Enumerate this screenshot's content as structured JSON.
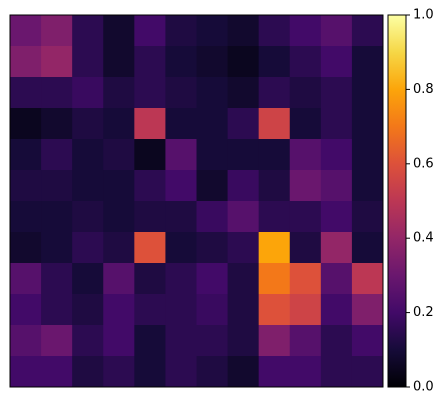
{
  "chart_data": {
    "type": "heatmap",
    "colormap": "inferno",
    "zlim": [
      0,
      1
    ],
    "colorbar_ticks": [
      {
        "value": 0,
        "label": "0.0"
      },
      {
        "value": 0.2,
        "label": "0.2"
      },
      {
        "value": 0.4,
        "label": "0.4"
      },
      {
        "value": 0.6,
        "label": "0.6"
      },
      {
        "value": 0.8,
        "label": "0.8"
      },
      {
        "value": 1,
        "label": "1.0"
      }
    ],
    "z": [
      [
        0.3,
        0.35,
        0.15,
        0.08,
        0.2,
        0.12,
        0.1,
        0.08,
        0.15,
        0.2,
        0.25,
        0.15
      ],
      [
        0.35,
        0.4,
        0.15,
        0.08,
        0.15,
        0.1,
        0.08,
        0.05,
        0.1,
        0.15,
        0.2,
        0.1
      ],
      [
        0.15,
        0.15,
        0.18,
        0.12,
        0.15,
        0.12,
        0.1,
        0.08,
        0.15,
        0.12,
        0.15,
        0.1
      ],
      [
        0.05,
        0.08,
        0.12,
        0.1,
        0.5,
        0.1,
        0.1,
        0.15,
        0.55,
        0.1,
        0.15,
        0.1
      ],
      [
        0.1,
        0.15,
        0.1,
        0.12,
        0.05,
        0.25,
        0.1,
        0.1,
        0.1,
        0.25,
        0.2,
        0.1
      ],
      [
        0.12,
        0.12,
        0.1,
        0.1,
        0.15,
        0.2,
        0.08,
        0.18,
        0.12,
        0.3,
        0.25,
        0.1
      ],
      [
        0.1,
        0.1,
        0.12,
        0.1,
        0.12,
        0.12,
        0.18,
        0.25,
        0.15,
        0.15,
        0.2,
        0.12
      ],
      [
        0.08,
        0.1,
        0.15,
        0.12,
        0.6,
        0.1,
        0.12,
        0.15,
        0.8,
        0.12,
        0.4,
        0.1
      ],
      [
        0.25,
        0.15,
        0.1,
        0.25,
        0.12,
        0.15,
        0.2,
        0.12,
        0.7,
        0.6,
        0.25,
        0.5
      ],
      [
        0.2,
        0.15,
        0.12,
        0.2,
        0.15,
        0.15,
        0.18,
        0.12,
        0.6,
        0.55,
        0.2,
        0.35
      ],
      [
        0.25,
        0.3,
        0.15,
        0.2,
        0.1,
        0.15,
        0.15,
        0.12,
        0.35,
        0.25,
        0.15,
        0.2
      ],
      [
        0.2,
        0.2,
        0.12,
        0.15,
        0.1,
        0.15,
        0.12,
        0.08,
        0.2,
        0.2,
        0.15,
        0.15
      ]
    ]
  }
}
